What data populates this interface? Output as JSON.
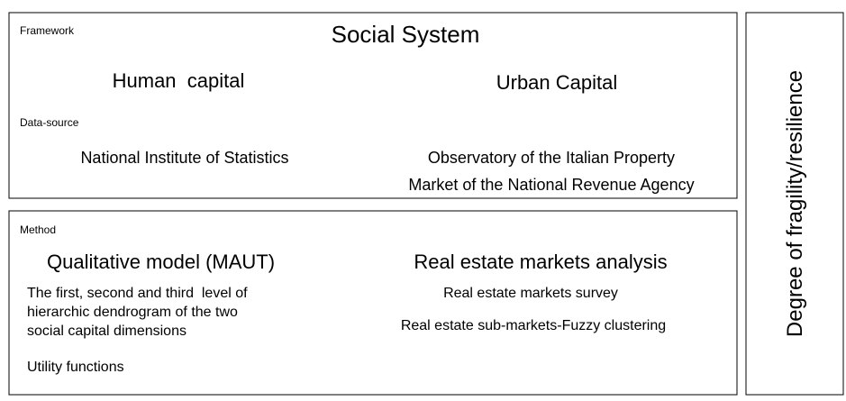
{
  "framework": {
    "label": "Framework",
    "title": "Social System",
    "left": "Human  capital",
    "right": "Urban Capital"
  },
  "data_source": {
    "label": "Data-source",
    "left": "National Institute of Statistics",
    "right_lines": [
      "Observatory of the Italian Property",
      "Market of the National Revenue Agency"
    ]
  },
  "method": {
    "label": "Method",
    "left_title": "Qualitative model (MAUT)",
    "left_lines": [
      "The first, second and third  level of",
      "hierarchic dendrogram of the two",
      "social capital dimensions"
    ],
    "left_extra": "Utility functions",
    "right_title": "Real estate markets analysis",
    "right_items": [
      "Real estate markets survey",
      "Real estate sub-markets-Fuzzy clustering"
    ]
  },
  "side": "Degree of fragility/resilience"
}
